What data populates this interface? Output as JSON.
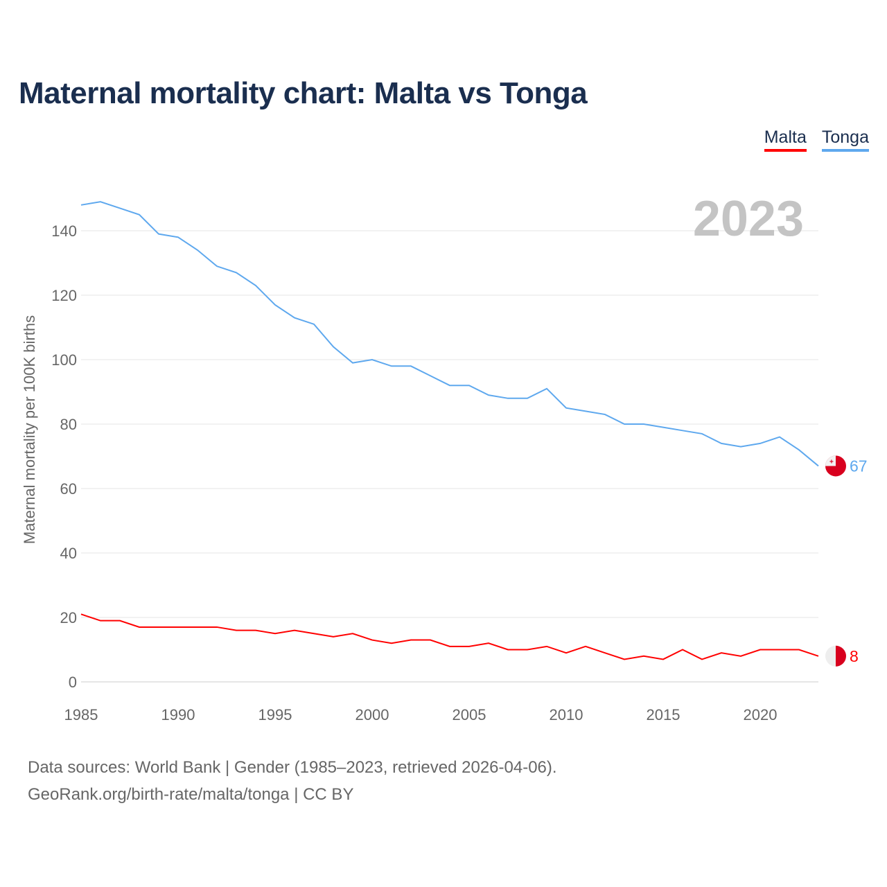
{
  "title": "Maternal mortality chart: Malta vs Tonga",
  "source_line1": "Data sources: World Bank | Gender (1985–2023, retrieved 2026-04-06).",
  "source_line2": "GeoRank.org/birth-rate/malta/tonga | CC BY",
  "chart_data": {
    "type": "line",
    "title": "Maternal mortality chart: Malta vs Tonga",
    "ylabel": "Maternal mortality per 100K births",
    "xlabel": "",
    "year_label": "2023",
    "xlim": [
      1985,
      2023
    ],
    "ylim": [
      0,
      150
    ],
    "x_ticks": [
      "1985",
      "1990",
      "1995",
      "2000",
      "2005",
      "2010",
      "2015",
      "2020"
    ],
    "y_ticks": [
      "0",
      "20",
      "40",
      "60",
      "80",
      "100",
      "120",
      "140"
    ],
    "grid": true,
    "legend_position": "top-right",
    "x": [
      1985,
      1986,
      1987,
      1988,
      1989,
      1990,
      1991,
      1992,
      1993,
      1994,
      1995,
      1996,
      1997,
      1998,
      1999,
      2000,
      2001,
      2002,
      2003,
      2004,
      2005,
      2006,
      2007,
      2008,
      2009,
      2010,
      2011,
      2012,
      2013,
      2014,
      2015,
      2016,
      2017,
      2018,
      2019,
      2020,
      2021,
      2022,
      2023
    ],
    "series": [
      {
        "name": "Malta",
        "color": "#ff0000",
        "end_label": "8",
        "values": [
          21,
          19,
          19,
          17,
          17,
          17,
          17,
          17,
          16,
          16,
          15,
          16,
          15,
          14,
          15,
          13,
          12,
          13,
          13,
          11,
          11,
          12,
          10,
          10,
          11,
          9,
          11,
          9,
          7,
          8,
          7,
          10,
          7,
          9,
          8,
          10,
          10,
          10,
          8
        ]
      },
      {
        "name": "Tonga",
        "color": "#5ea8ee",
        "end_label": "67",
        "values": [
          148,
          149,
          147,
          145,
          139,
          138,
          134,
          129,
          127,
          123,
          117,
          113,
          111,
          104,
          99,
          100,
          98,
          98,
          95,
          92,
          92,
          89,
          88,
          88,
          91,
          85,
          84,
          83,
          80,
          80,
          79,
          78,
          77,
          74,
          73,
          74,
          76,
          72,
          67
        ]
      }
    ]
  }
}
